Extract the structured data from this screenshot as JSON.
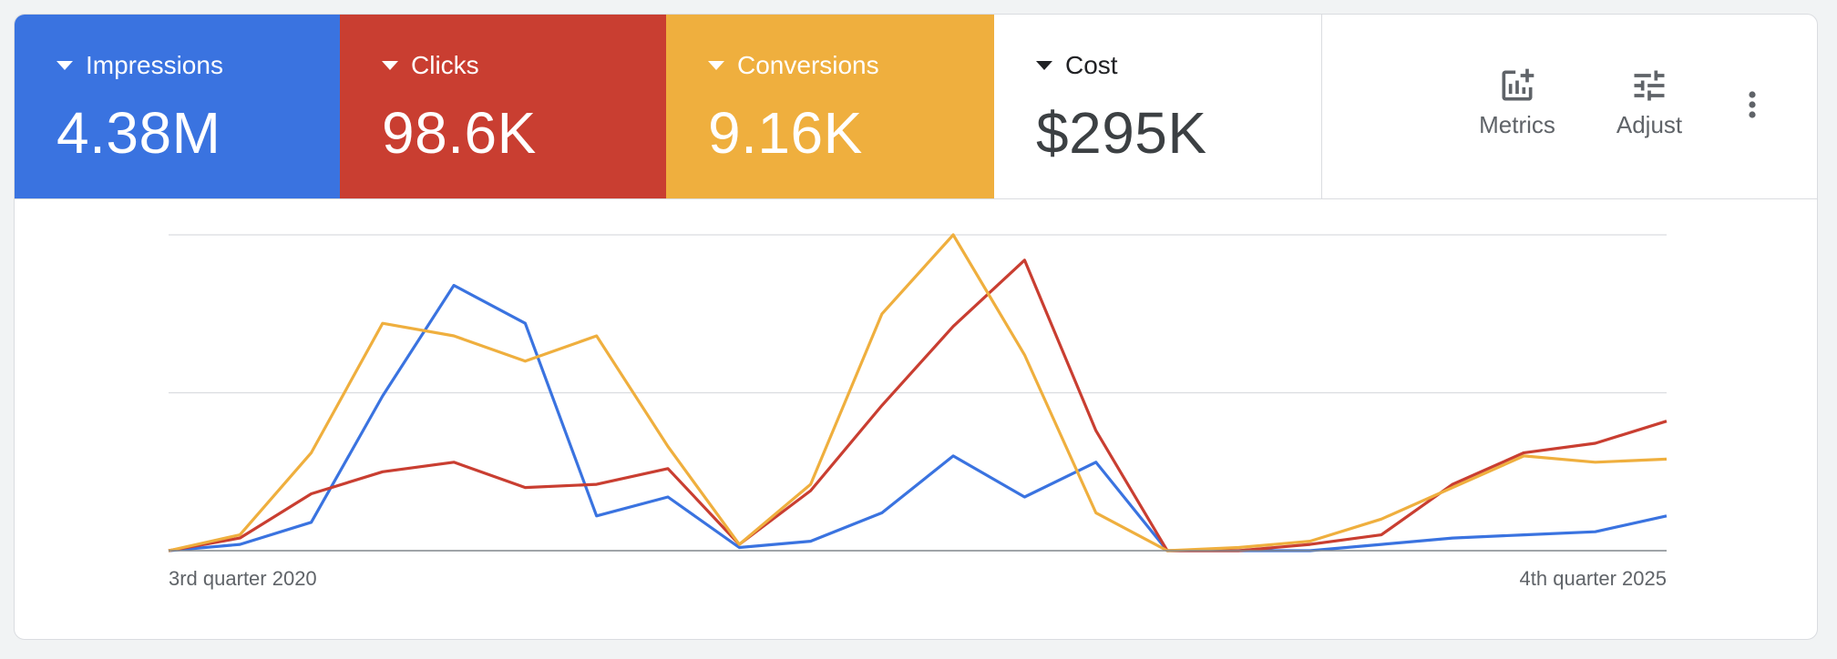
{
  "scorecards": [
    {
      "label": "Impressions",
      "value": "4.38M",
      "color": "#3a73e0"
    },
    {
      "label": "Clicks",
      "value": "98.6K",
      "color": "#c93e31"
    },
    {
      "label": "Conversions",
      "value": "9.16K",
      "color": "#efaf3e"
    },
    {
      "label": "Cost",
      "value": "$295K",
      "color": "#ffffff"
    }
  ],
  "toolbar": {
    "metrics_label": "Metrics",
    "adjust_label": "Adjust",
    "more_icon": "more-vert-icon"
  },
  "chart_data": {
    "type": "line",
    "x_start_label": "3rd quarter 2020",
    "x_end_label": "4th quarter 2025",
    "ylim": [
      0,
      100
    ],
    "grid": true,
    "series": [
      {
        "name": "Impressions",
        "color": "#3a73e0",
        "values": [
          0,
          2,
          9,
          49,
          84,
          72,
          11,
          17,
          1,
          3,
          12,
          30,
          17,
          28,
          0,
          0,
          0,
          2,
          4,
          5,
          6,
          11
        ]
      },
      {
        "name": "Clicks",
        "color": "#c93e31",
        "values": [
          0,
          4,
          18,
          25,
          28,
          20,
          21,
          26,
          2,
          19,
          46,
          71,
          92,
          38,
          0,
          0,
          2,
          5,
          21,
          31,
          34,
          41
        ]
      },
      {
        "name": "Conversions",
        "color": "#efaf3e",
        "values": [
          0,
          5,
          31,
          72,
          68,
          60,
          68,
          33,
          2,
          21,
          75,
          100,
          62,
          12,
          0,
          1,
          3,
          10,
          20,
          30,
          28,
          29
        ]
      }
    ]
  }
}
